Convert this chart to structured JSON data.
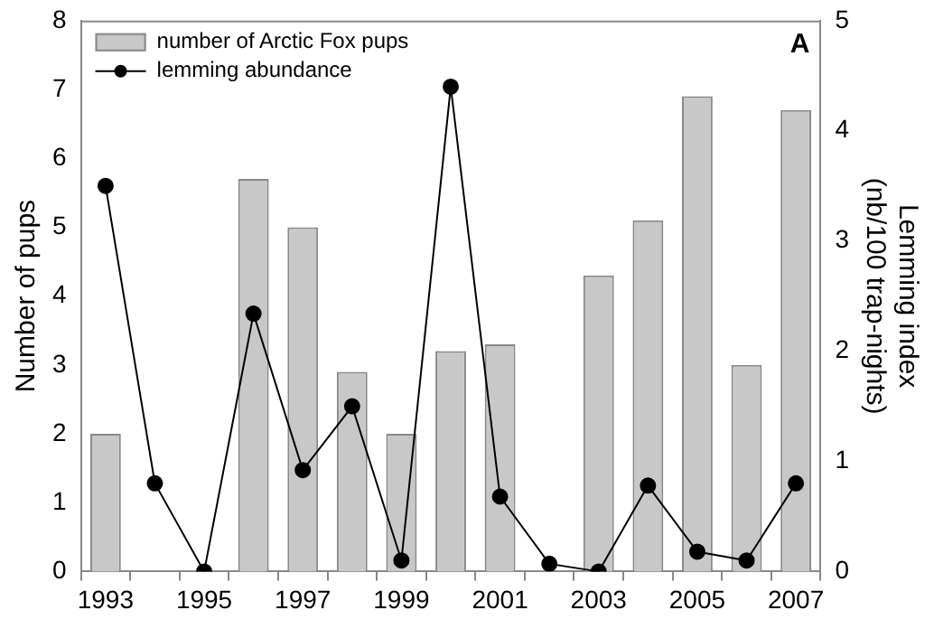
{
  "chart_data": {
    "type": "bar",
    "categories": [
      "1993",
      null,
      "1995",
      null,
      "1997",
      null,
      "1999",
      null,
      "2001",
      null,
      "2003",
      null,
      "2005",
      null,
      "2007"
    ],
    "series": [
      {
        "name": "number of Arctic Fox pups",
        "color": "#c8c8c8",
        "values": [
          2.0,
          null,
          null,
          5.7,
          5.0,
          2.9,
          2.0,
          3.2,
          3.3,
          null,
          4.3,
          5.1,
          6.9,
          3.0,
          6.7
        ]
      },
      {
        "name": "lemming abundance",
        "type": "line",
        "axis": "y2",
        "color": "#000000",
        "values": [
          3.5,
          0.8,
          0,
          2.34,
          0.92,
          1.5,
          0.1,
          4.4,
          0.68,
          0.07,
          0,
          0.78,
          0.18,
          0.1,
          0.8
        ]
      }
    ],
    "ylabel": "Number of pups",
    "y2label": "Lemming index\n(nb/100 trap-nights)",
    "ylim": [
      0,
      8
    ],
    "yticks": [
      0,
      1,
      2,
      3,
      4,
      5,
      6,
      7,
      8
    ],
    "y2lim": [
      0,
      5
    ],
    "y2ticks": [
      0,
      1,
      2,
      3,
      4,
      5
    ],
    "annotations": [
      "A"
    ],
    "legend": "top left",
    "grid": false,
    "marker": "circle"
  }
}
